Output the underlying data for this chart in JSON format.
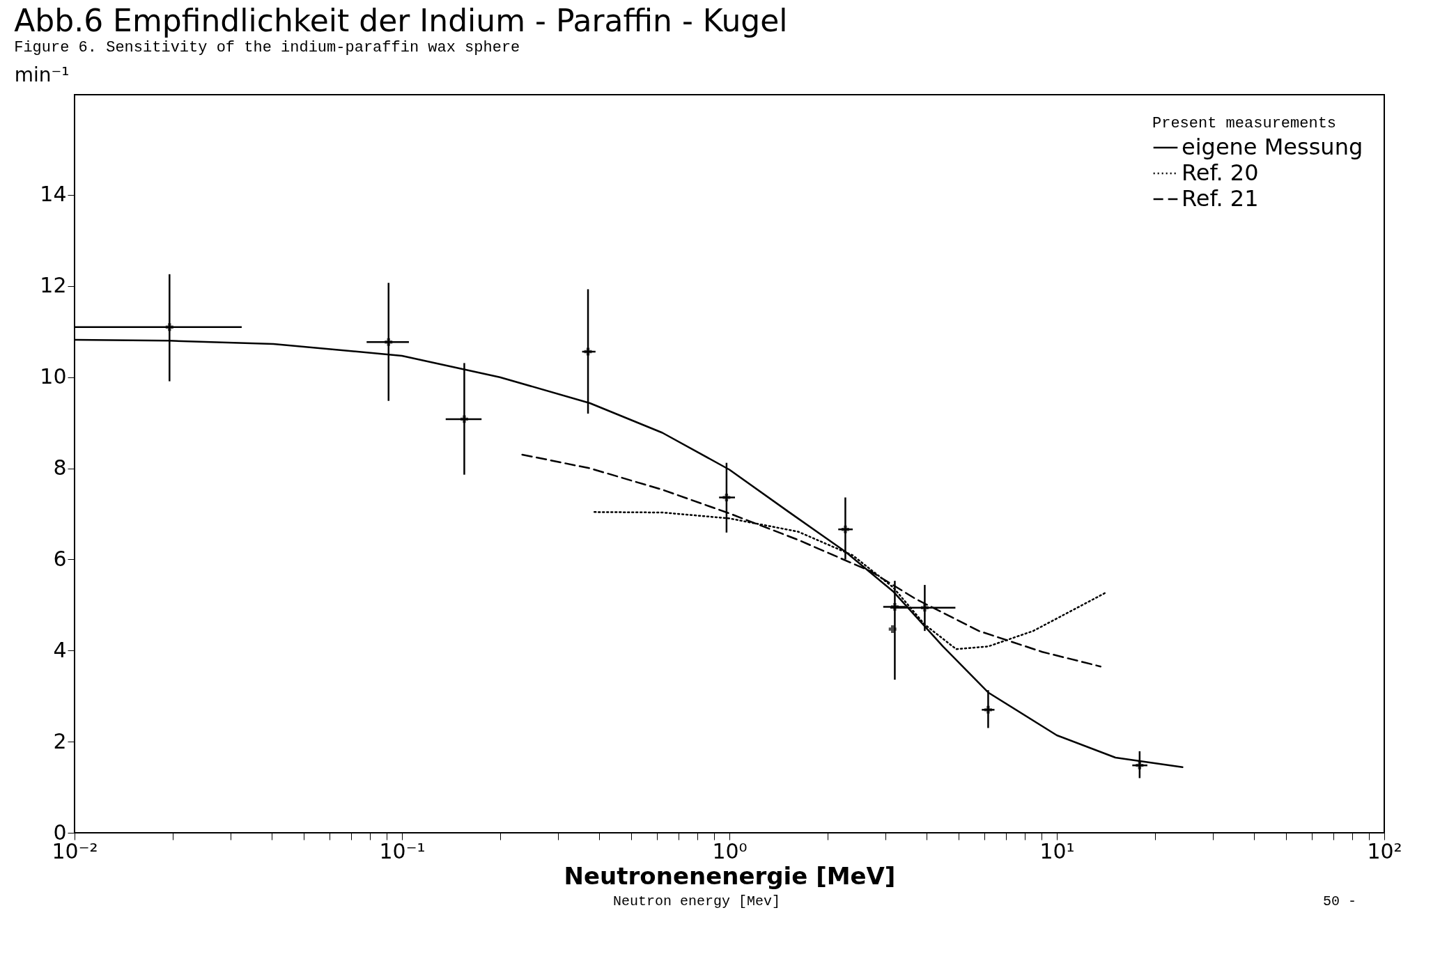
{
  "chart_data": {
    "type": "line",
    "title": "Abb.6  Empfindlichkeit der Indium - Paraffin - Kugel",
    "subtitle": "Figure 6.    Sensitivity of the indium-paraffin wax sphere",
    "xlabel": "Neutronenenergie [MeV]",
    "ylabel": "min⁻¹",
    "legend_title": "Present measurements",
    "legend": "top right",
    "log": "x",
    "grid": false,
    "annotations": [
      "Neutron energy [Mev]",
      "50 -"
    ],
    "xlim": [
      0.01,
      100
    ],
    "ylim": [
      0,
      16.2
    ],
    "yticks": [
      0,
      2,
      4,
      6,
      8,
      10,
      12,
      14
    ],
    "xticks": [
      {
        "value": 0.01,
        "label": "10⁻²"
      },
      {
        "value": 0.02,
        "label": null
      },
      {
        "value": 0.03,
        "label": null
      },
      {
        "value": 0.04,
        "label": null
      },
      {
        "value": 0.05,
        "label": null
      },
      {
        "value": 0.06,
        "label": null
      },
      {
        "value": 0.07,
        "label": null
      },
      {
        "value": 0.08,
        "label": null
      },
      {
        "value": 0.09,
        "label": null
      },
      {
        "value": 0.1,
        "label": "10⁻¹"
      },
      {
        "value": 0.2,
        "label": null
      },
      {
        "value": 0.3,
        "label": null
      },
      {
        "value": 0.4,
        "label": null
      },
      {
        "value": 0.5,
        "label": null
      },
      {
        "value": 0.6,
        "label": null
      },
      {
        "value": 0.7,
        "label": null
      },
      {
        "value": 0.8,
        "label": null
      },
      {
        "value": 0.9,
        "label": null
      },
      {
        "value": 1,
        "label": "10⁰"
      },
      {
        "value": 2,
        "label": null
      },
      {
        "value": 3,
        "label": null
      },
      {
        "value": 4,
        "label": null
      },
      {
        "value": 5,
        "label": null
      },
      {
        "value": 6,
        "label": null
      },
      {
        "value": 7,
        "label": null
      },
      {
        "value": 8,
        "label": null
      },
      {
        "value": 9,
        "label": null
      },
      {
        "value": 10,
        "label": "10¹"
      },
      {
        "value": 20,
        "label": null
      },
      {
        "value": 30,
        "label": null
      },
      {
        "value": 40,
        "label": null
      },
      {
        "value": 50,
        "label": null
      },
      {
        "value": 60,
        "label": null
      },
      {
        "value": 70,
        "label": null
      },
      {
        "value": 80,
        "label": null
      },
      {
        "value": 90,
        "label": null
      },
      {
        "value": 100,
        "label": "10²"
      }
    ],
    "series": [
      {
        "name": "eigene Messung",
        "color": "#000000",
        "line_style": "solid",
        "x": [
          0.01,
          0.0195,
          0.0405,
          0.1,
          0.199,
          0.375,
          0.624,
          1.0,
          1.52,
          2.26,
          3.16,
          4.49,
          6.17,
          10,
          15.1,
          24.2
        ],
        "values": [
          10.82,
          10.8,
          10.73,
          10.47,
          10.0,
          9.43,
          8.78,
          7.97,
          7.04,
          6.17,
          5.3,
          4.09,
          3.08,
          2.14,
          1.65,
          1.44
        ]
      },
      {
        "name": "Ref. 20",
        "color": "#000000",
        "line_style": "dotted",
        "x": [
          0.387,
          0.624,
          1.0,
          1.62,
          2.38,
          3.16,
          3.95,
          4.93,
          6.17,
          8.47,
          14.1
        ],
        "values": [
          7.04,
          7.03,
          6.9,
          6.61,
          6.09,
          5.39,
          4.57,
          4.03,
          4.09,
          4.43,
          5.27
        ]
      },
      {
        "name": "Ref. 21",
        "color": "#000000",
        "line_style": "dashed",
        "x": [
          0.233,
          0.375,
          0.624,
          1.0,
          1.62,
          2.7,
          3.71,
          5.78,
          9.03,
          13.6
        ],
        "values": [
          8.3,
          8.0,
          7.53,
          7.01,
          6.43,
          5.74,
          5.13,
          4.43,
          3.97,
          3.65
        ]
      },
      {
        "type": "scatter",
        "color": "#000000",
        "marker": "cross",
        "x": [
          0.0195,
          0.091,
          0.155,
          0.37,
          0.98,
          2.26,
          3.2,
          3.15,
          3.95,
          6.17,
          17.9
        ],
        "values": [
          11.1,
          10.77,
          9.08,
          10.56,
          7.36,
          6.66,
          4.96,
          4.47,
          4.94,
          2.7,
          1.48
        ],
        "errors": [
          [
            9.91,
            12.26
          ],
          [
            9.48,
            12.07
          ],
          [
            7.86,
            10.31
          ],
          [
            9.2,
            11.93
          ],
          [
            6.59,
            8.12
          ],
          [
            6.0,
            7.36
          ],
          [
            3.36,
            5.53
          ],
          null,
          [
            4.43,
            5.44
          ],
          [
            2.3,
            3.13
          ],
          [
            1.2,
            1.79
          ]
        ],
        "xerrors": [
          [
            0.01,
            0.0324
          ],
          [
            0.078,
            0.105
          ],
          [
            0.136,
            0.175
          ],
          [
            0.355,
            0.39
          ],
          [
            0.93,
            1.04
          ],
          [
            2.15,
            2.38
          ],
          [
            2.95,
            3.45
          ],
          null,
          [
            3.1,
            4.9
          ],
          [
            5.9,
            6.45
          ],
          [
            17.0,
            18.9
          ]
        ]
      }
    ]
  }
}
